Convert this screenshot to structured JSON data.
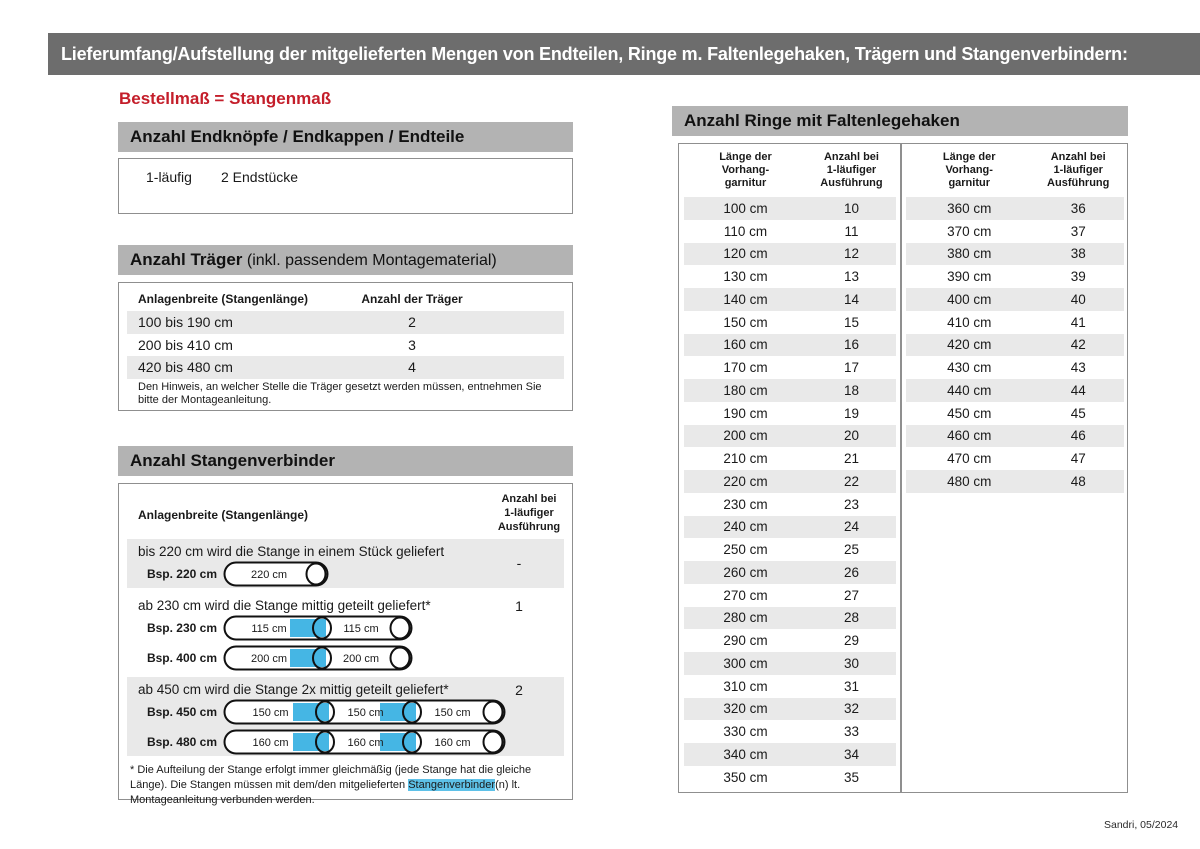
{
  "page": {
    "title": "Lieferumfang/Aufstellung der mitgelieferten Mengen von Endteilen, Ringe m. Faltenlegehaken, Trägern und Stangenverbindern:",
    "subtitle": "Bestellmaß = Stangenmaß",
    "footer": "Sandri, 05/2024"
  },
  "colors": {
    "title_bar_gray": "#6d6d6d",
    "section_header_gray": "#b3b3b3",
    "row_shade_gray": "#e9e9e9",
    "connector_blue": "#45b6e4",
    "highlight_blue": "#5ec1e8",
    "accent_red": "#c41e2a"
  },
  "endteile": {
    "header": "Anzahl Endknöpfe / Endkappen / Endteile",
    "row": {
      "label": "1-läufig",
      "value": "2 Endstücke"
    }
  },
  "traeger": {
    "header_bold": "Anzahl Träger",
    "header_rest": " (inkl. passendem Montagematerial)",
    "col1": "Anlagenbreite (Stangenlänge)",
    "col2": "Anzahl der Träger",
    "rows": [
      {
        "range": "100 bis 190 cm",
        "count": "2"
      },
      {
        "range": "200 bis 410 cm",
        "count": "3"
      },
      {
        "range": "420 bis 480 cm",
        "count": "4"
      }
    ],
    "note": "Den Hinweis, an welcher Stelle die Träger gesetzt werden müssen, entnehmen Sie bitte der Montageanleitung."
  },
  "verbinder": {
    "header": "Anzahl Stangenverbinder",
    "col1": "Anlagenbreite (Stangenlänge)",
    "col2": "Anzahl bei\n1-läufiger\nAusführung",
    "rows": [
      {
        "text": "bis 220 cm wird die Stange in einem Stück geliefert",
        "count": "-",
        "examples": [
          {
            "label": "Bsp. 220 cm",
            "segments": [
              "220 cm"
            ]
          }
        ]
      },
      {
        "text": "ab 230 cm wird die Stange mittig geteilt geliefert*",
        "count": "1",
        "examples": [
          {
            "label": "Bsp. 230 cm",
            "segments": [
              "115 cm",
              "115 cm"
            ]
          },
          {
            "label": "Bsp. 400 cm",
            "segments": [
              "200 cm",
              "200 cm"
            ]
          }
        ]
      },
      {
        "text": "ab 450 cm wird die Stange 2x mittig geteilt geliefert*",
        "count": "2",
        "examples": [
          {
            "label": "Bsp. 450 cm",
            "segments": [
              "150 cm",
              "150 cm",
              "150 cm"
            ]
          },
          {
            "label": "Bsp. 480 cm",
            "segments": [
              "160 cm",
              "160 cm",
              "160 cm"
            ]
          }
        ]
      }
    ],
    "footnote_pre": "* Die Aufteilung der Stange erfolgt immer gleichmäßig (jede Stange hat die gleiche Länge). Die Stangen müssen mit dem/den mitgelieferten ",
    "footnote_highlight": "Stangenverbinder",
    "footnote_post": "(n) lt. Montageanleitung verbunden werden."
  },
  "ringe": {
    "header": "Anzahl Ringe mit Faltenlegehaken",
    "col_length": "Länge der\nVorhang-\ngarnitur",
    "col_count": "Anzahl bei\n1-läufiger\nAusführung",
    "table1": [
      {
        "length": "100 cm",
        "count": "10"
      },
      {
        "length": "110 cm",
        "count": "11"
      },
      {
        "length": "120 cm",
        "count": "12"
      },
      {
        "length": "130 cm",
        "count": "13"
      },
      {
        "length": "140 cm",
        "count": "14"
      },
      {
        "length": "150 cm",
        "count": "15"
      },
      {
        "length": "160 cm",
        "count": "16"
      },
      {
        "length": "170 cm",
        "count": "17"
      },
      {
        "length": "180 cm",
        "count": "18"
      },
      {
        "length": "190 cm",
        "count": "19"
      },
      {
        "length": "200 cm",
        "count": "20"
      },
      {
        "length": "210 cm",
        "count": "21"
      },
      {
        "length": "220 cm",
        "count": "22"
      },
      {
        "length": "230 cm",
        "count": "23"
      },
      {
        "length": "240 cm",
        "count": "24"
      },
      {
        "length": "250 cm",
        "count": "25"
      },
      {
        "length": "260 cm",
        "count": "26"
      },
      {
        "length": "270 cm",
        "count": "27"
      },
      {
        "length": "280 cm",
        "count": "28"
      },
      {
        "length": "290 cm",
        "count": "29"
      },
      {
        "length": "300 cm",
        "count": "30"
      },
      {
        "length": "310 cm",
        "count": "31"
      },
      {
        "length": "320 cm",
        "count": "32"
      },
      {
        "length": "330 cm",
        "count": "33"
      },
      {
        "length": "340 cm",
        "count": "34"
      },
      {
        "length": "350 cm",
        "count": "35"
      }
    ],
    "table2": [
      {
        "length": "360 cm",
        "count": "36"
      },
      {
        "length": "370 cm",
        "count": "37"
      },
      {
        "length": "380 cm",
        "count": "38"
      },
      {
        "length": "390 cm",
        "count": "39"
      },
      {
        "length": "400 cm",
        "count": "40"
      },
      {
        "length": "410 cm",
        "count": "41"
      },
      {
        "length": "420 cm",
        "count": "42"
      },
      {
        "length": "430 cm",
        "count": "43"
      },
      {
        "length": "440 cm",
        "count": "44"
      },
      {
        "length": "450 cm",
        "count": "45"
      },
      {
        "length": "460 cm",
        "count": "46"
      },
      {
        "length": "470 cm",
        "count": "47"
      },
      {
        "length": "480 cm",
        "count": "48"
      }
    ]
  }
}
